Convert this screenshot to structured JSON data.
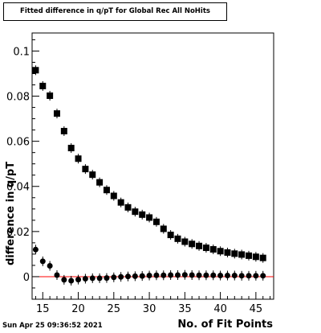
{
  "header": {
    "title": "Fitted difference in q/pT for Global Rec All NoHits"
  },
  "footer": {
    "timestamp": "Sun Apr 25 09:36:52 2021"
  },
  "chart_data": {
    "type": "scatter",
    "title": "Fitted difference in q/pT for Global Rec All NoHits",
    "xlabel": "No. of Fit Points",
    "ylabel": "difference in q/pT",
    "xlim": [
      13.5,
      47.5
    ],
    "ylim": [
      -0.01,
      0.108
    ],
    "x_ticks": [
      15,
      20,
      25,
      30,
      35,
      40,
      45
    ],
    "x_tick_labels": [
      "15",
      "20",
      "25",
      "30",
      "35",
      "40",
      "45"
    ],
    "y_ticks": [
      0,
      0.02,
      0.04,
      0.06,
      0.08,
      0.1
    ],
    "y_tick_labels": [
      "0",
      "0.02",
      "0.04",
      "0.06",
      "0.08",
      "0.1"
    ],
    "grid": false,
    "reference_line": {
      "y": 0,
      "color": "#ff0000"
    },
    "series": [
      {
        "marker": "square",
        "color": "#000000",
        "x": [
          14,
          15,
          16,
          17,
          18,
          19,
          20,
          21,
          22,
          23,
          24,
          25,
          26,
          27,
          28,
          29,
          30,
          31,
          32,
          33,
          34,
          35,
          36,
          37,
          38,
          39,
          40,
          41,
          42,
          43,
          44,
          45,
          46
        ],
        "y": [
          0.0915,
          0.0845,
          0.0802,
          0.0723,
          0.0645,
          0.057,
          0.0523,
          0.0477,
          0.0452,
          0.0418,
          0.0384,
          0.0358,
          0.0329,
          0.0307,
          0.0288,
          0.0275,
          0.0262,
          0.0243,
          0.0212,
          0.0185,
          0.0168,
          0.0155,
          0.0145,
          0.0136,
          0.0128,
          0.0121,
          0.0113,
          0.0107,
          0.0102,
          0.0098,
          0.0093,
          0.0088,
          0.0083
        ]
      },
      {
        "marker": "circle",
        "color": "#000000",
        "x": [
          14,
          15,
          16,
          17,
          18,
          19,
          20,
          21,
          22,
          23,
          24,
          25,
          26,
          27,
          28,
          29,
          30,
          31,
          32,
          33,
          34,
          35,
          36,
          37,
          38,
          39,
          40,
          41,
          42,
          43,
          44,
          45,
          46
        ],
        "y": [
          0.012,
          0.0068,
          0.0048,
          0.0007,
          -0.0014,
          -0.0018,
          -0.0013,
          -0.0009,
          -0.0007,
          -0.0007,
          -0.0006,
          -0.0003,
          -0.0001,
          0.0001,
          0.0002,
          0.0003,
          0.0005,
          0.0006,
          0.0006,
          0.0007,
          0.0007,
          0.0008,
          0.0007,
          0.0006,
          0.0006,
          0.0006,
          0.0005,
          0.0005,
          0.0005,
          0.0004,
          0.0004,
          0.0004,
          0.0004
        ]
      }
    ]
  }
}
